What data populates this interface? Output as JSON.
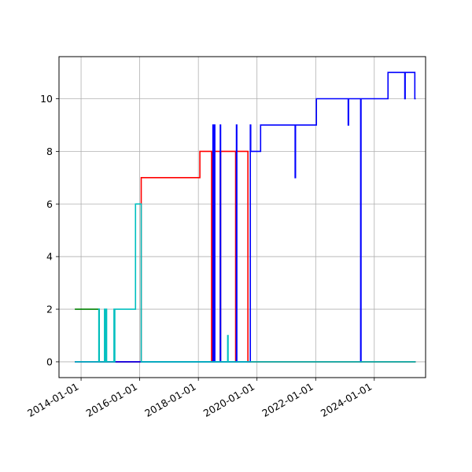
{
  "chart_data": {
    "type": "line",
    "title": "",
    "xlabel": "",
    "ylabel": "",
    "x_axis": "date",
    "xlim": [
      "2013-04-01",
      "2025-10-01"
    ],
    "ylim": [
      -0.6,
      11.6
    ],
    "grid": true,
    "legend": "none",
    "x_ticks": [
      "2014-01-01",
      "2016-01-01",
      "2018-01-01",
      "2020-01-01",
      "2022-01-01",
      "2024-01-01"
    ],
    "y_ticks": [
      0,
      2,
      4,
      6,
      8,
      10
    ],
    "series": [
      {
        "color": "#008000",
        "points": [
          [
            "2013-10-15",
            2
          ],
          [
            "2014-08-15",
            2
          ],
          [
            "2014-08-15",
            0
          ],
          [
            "2025-05-31",
            0
          ]
        ]
      },
      {
        "color": "#ff0000",
        "points": [
          [
            "2013-10-15",
            0
          ],
          [
            "2016-01-20",
            0
          ],
          [
            "2016-01-20",
            7
          ],
          [
            "2018-01-20",
            7
          ],
          [
            "2018-01-20",
            8
          ],
          [
            "2018-06-15",
            8
          ],
          [
            "2018-06-15",
            0
          ],
          [
            "2018-06-20",
            0
          ],
          [
            "2018-06-20",
            8
          ],
          [
            "2018-06-25",
            8
          ],
          [
            "2018-06-25",
            0
          ],
          [
            "2018-06-30",
            0
          ],
          [
            "2018-06-30",
            8
          ],
          [
            "2018-07-05",
            8
          ],
          [
            "2018-07-05",
            0
          ],
          [
            "2018-07-10",
            0
          ],
          [
            "2018-07-10",
            8
          ],
          [
            "2018-07-15",
            8
          ],
          [
            "2018-07-15",
            0
          ],
          [
            "2018-07-20",
            0
          ],
          [
            "2018-07-20",
            8
          ],
          [
            "2018-10-01",
            8
          ],
          [
            "2018-10-01",
            0
          ],
          [
            "2018-10-05",
            0
          ],
          [
            "2018-10-05",
            8
          ],
          [
            "2019-04-10",
            8
          ],
          [
            "2019-04-10",
            0
          ],
          [
            "2019-04-15",
            0
          ],
          [
            "2019-04-15",
            8
          ],
          [
            "2019-09-10",
            8
          ],
          [
            "2019-09-10",
            0
          ],
          [
            "2025-05-31",
            0
          ]
        ]
      },
      {
        "color": "#0000ff",
        "points": [
          [
            "2013-10-15",
            0
          ],
          [
            "2018-07-01",
            0
          ],
          [
            "2018-07-01",
            9
          ],
          [
            "2018-07-05",
            9
          ],
          [
            "2018-07-05",
            0
          ],
          [
            "2018-07-10",
            0
          ],
          [
            "2018-07-10",
            9
          ],
          [
            "2018-07-15",
            9
          ],
          [
            "2018-07-15",
            0
          ],
          [
            "2018-07-20",
            0
          ],
          [
            "2018-07-20",
            9
          ],
          [
            "2018-07-25",
            9
          ],
          [
            "2018-07-25",
            0
          ],
          [
            "2018-10-01",
            0
          ],
          [
            "2018-10-01",
            9
          ],
          [
            "2018-10-05",
            9
          ],
          [
            "2018-10-05",
            0
          ],
          [
            "2019-04-20",
            0
          ],
          [
            "2019-04-20",
            9
          ],
          [
            "2019-04-25",
            9
          ],
          [
            "2019-04-25",
            0
          ],
          [
            "2019-10-10",
            0
          ],
          [
            "2019-10-10",
            9
          ],
          [
            "2019-10-15",
            9
          ],
          [
            "2019-10-15",
            8
          ],
          [
            "2020-02-15",
            8
          ],
          [
            "2020-02-15",
            9
          ],
          [
            "2021-04-20",
            9
          ],
          [
            "2021-04-20",
            7
          ],
          [
            "2021-04-25",
            7
          ],
          [
            "2021-04-25",
            9
          ],
          [
            "2022-01-10",
            9
          ],
          [
            "2022-01-10",
            10
          ],
          [
            "2023-02-10",
            10
          ],
          [
            "2023-02-10",
            9
          ],
          [
            "2023-02-15",
            9
          ],
          [
            "2023-02-15",
            10
          ],
          [
            "2023-07-15",
            10
          ],
          [
            "2023-07-15",
            0
          ],
          [
            "2023-07-20",
            0
          ],
          [
            "2023-07-20",
            10
          ],
          [
            "2024-06-20",
            10
          ],
          [
            "2024-06-20",
            11
          ],
          [
            "2025-01-15",
            11
          ],
          [
            "2025-01-15",
            10
          ],
          [
            "2025-01-20",
            10
          ],
          [
            "2025-01-20",
            11
          ],
          [
            "2025-05-20",
            11
          ],
          [
            "2025-05-20",
            10
          ],
          [
            "2025-05-31",
            10
          ]
        ]
      },
      {
        "color": "#00bfbf",
        "points": [
          [
            "2013-10-15",
            0
          ],
          [
            "2014-08-10",
            0
          ],
          [
            "2014-08-10",
            2
          ],
          [
            "2014-08-15",
            2
          ],
          [
            "2014-08-15",
            0
          ],
          [
            "2014-10-20",
            0
          ],
          [
            "2014-10-20",
            2
          ],
          [
            "2014-10-25",
            2
          ],
          [
            "2014-10-25",
            0
          ],
          [
            "2014-11-10",
            0
          ],
          [
            "2014-11-10",
            2
          ],
          [
            "2014-11-15",
            2
          ],
          [
            "2014-11-15",
            0
          ],
          [
            "2015-02-15",
            0
          ],
          [
            "2015-02-15",
            2
          ],
          [
            "2015-02-20",
            2
          ],
          [
            "2015-02-20",
            0
          ],
          [
            "2015-02-25",
            0
          ],
          [
            "2015-02-25",
            2
          ],
          [
            "2015-03-01",
            2
          ],
          [
            "2015-03-01",
            2
          ],
          [
            "2015-11-10",
            2
          ],
          [
            "2015-11-10",
            6
          ],
          [
            "2016-01-20",
            6
          ],
          [
            "2016-01-20",
            0
          ],
          [
            "2019-01-01",
            0
          ],
          [
            "2019-01-01",
            1
          ],
          [
            "2019-01-06",
            1
          ],
          [
            "2019-01-06",
            0
          ],
          [
            "2025-05-31",
            0
          ]
        ]
      }
    ]
  }
}
